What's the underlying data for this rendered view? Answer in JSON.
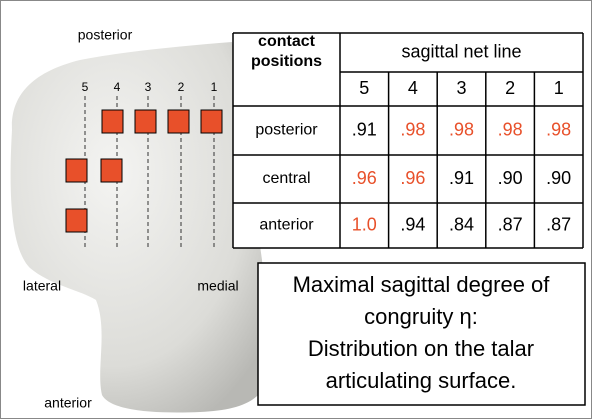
{
  "labels": {
    "posterior": "posterior",
    "lateral": "lateral",
    "medial": "medial",
    "anterior": "anterior"
  },
  "column_numbers": [
    "5",
    "4",
    "3",
    "2",
    "1"
  ],
  "table": {
    "corner": [
      "contact",
      "positions"
    ],
    "header": "sagittal net line",
    "columns": [
      "5",
      "4",
      "3",
      "2",
      "1"
    ],
    "highlight_color": "#e8502a",
    "rows": [
      {
        "label": "posterior",
        "cells": [
          {
            "text": ".91",
            "highlight": false
          },
          {
            "text": ".98",
            "highlight": true
          },
          {
            "text": ".98",
            "highlight": true
          },
          {
            "text": ".98",
            "highlight": true
          },
          {
            "text": ".98",
            "highlight": true
          }
        ]
      },
      {
        "label": "central",
        "cells": [
          {
            "text": ".96",
            "highlight": true
          },
          {
            "text": ".96",
            "highlight": true
          },
          {
            "text": ".91",
            "highlight": false
          },
          {
            "text": ".90",
            "highlight": false
          },
          {
            "text": ".90",
            "highlight": false
          }
        ]
      },
      {
        "label": "anterior",
        "cells": [
          {
            "text": "1.0",
            "highlight": true
          },
          {
            "text": ".94",
            "highlight": false
          },
          {
            "text": ".84",
            "highlight": false
          },
          {
            "text": ".87",
            "highlight": false
          },
          {
            "text": ".87",
            "highlight": false
          }
        ]
      }
    ]
  },
  "caption": [
    "Maximal sagittal degree of",
    "congruity η:",
    "Distribution on the talar",
    "articulating surface."
  ]
}
